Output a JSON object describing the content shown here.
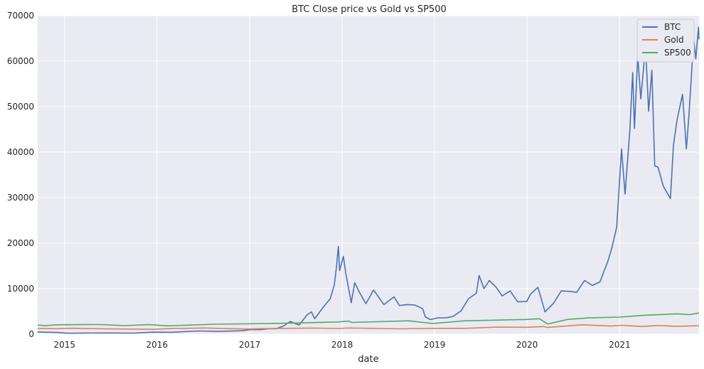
{
  "chart_data": {
    "type": "line",
    "title": "BTC Close price vs Gold vs SP500",
    "xlabel": "date",
    "ylabel": "",
    "xlim": [
      "2014-09-17",
      "2021-11-10"
    ],
    "ylim": [
      0,
      70000
    ],
    "x_ticks": [
      "2015",
      "2016",
      "2017",
      "2018",
      "2019",
      "2020",
      "2021"
    ],
    "y_ticks": [
      "0",
      "10000",
      "20000",
      "30000",
      "40000",
      "50000",
      "60000",
      "70000"
    ],
    "grid": true,
    "legend_position": "top-right",
    "series": [
      {
        "name": "BTC",
        "color": "#4c72b0",
        "points": [
          [
            "2014-09-17",
            460
          ],
          [
            "2014-12-01",
            380
          ],
          [
            "2015-01-15",
            210
          ],
          [
            "2015-04-01",
            250
          ],
          [
            "2015-07-01",
            260
          ],
          [
            "2015-10-01",
            240
          ],
          [
            "2015-12-15",
            430
          ],
          [
            "2016-03-01",
            420
          ],
          [
            "2016-06-15",
            700
          ],
          [
            "2016-09-01",
            610
          ],
          [
            "2016-12-01",
            750
          ],
          [
            "2017-01-05",
            1000
          ],
          [
            "2017-02-15",
            1000
          ],
          [
            "2017-03-15",
            1200
          ],
          [
            "2017-04-15",
            1200
          ],
          [
            "2017-05-15",
            1800
          ],
          [
            "2017-06-10",
            2800
          ],
          [
            "2017-07-15",
            2000
          ],
          [
            "2017-08-15",
            4200
          ],
          [
            "2017-09-01",
            4900
          ],
          [
            "2017-09-15",
            3400
          ],
          [
            "2017-10-15",
            5700
          ],
          [
            "2017-11-15",
            7800
          ],
          [
            "2017-12-01",
            10800
          ],
          [
            "2017-12-10",
            15000
          ],
          [
            "2017-12-17",
            19300
          ],
          [
            "2017-12-22",
            14000
          ],
          [
            "2018-01-06",
            17100
          ],
          [
            "2018-01-15",
            13500
          ],
          [
            "2018-02-06",
            6900
          ],
          [
            "2018-02-20",
            11300
          ],
          [
            "2018-03-10",
            9200
          ],
          [
            "2018-04-05",
            6700
          ],
          [
            "2018-05-05",
            9700
          ],
          [
            "2018-06-15",
            6500
          ],
          [
            "2018-07-25",
            8200
          ],
          [
            "2018-08-15",
            6300
          ],
          [
            "2018-09-15",
            6500
          ],
          [
            "2018-10-15",
            6400
          ],
          [
            "2018-11-15",
            5600
          ],
          [
            "2018-11-25",
            3800
          ],
          [
            "2018-12-15",
            3200
          ],
          [
            "2019-01-15",
            3600
          ],
          [
            "2019-02-15",
            3600
          ],
          [
            "2019-03-15",
            3900
          ],
          [
            "2019-04-15",
            5100
          ],
          [
            "2019-05-15",
            7800
          ],
          [
            "2019-06-15",
            9000
          ],
          [
            "2019-06-26",
            12900
          ],
          [
            "2019-07-15",
            10000
          ],
          [
            "2019-08-05",
            11800
          ],
          [
            "2019-09-01",
            10300
          ],
          [
            "2019-09-25",
            8400
          ],
          [
            "2019-10-26",
            9500
          ],
          [
            "2019-11-25",
            7100
          ],
          [
            "2019-12-31",
            7200
          ],
          [
            "2020-01-15",
            8800
          ],
          [
            "2020-02-13",
            10300
          ],
          [
            "2020-03-12",
            4900
          ],
          [
            "2020-04-15",
            6800
          ],
          [
            "2020-05-15",
            9500
          ],
          [
            "2020-06-15",
            9400
          ],
          [
            "2020-07-15",
            9200
          ],
          [
            "2020-08-15",
            11800
          ],
          [
            "2020-09-15",
            10700
          ],
          [
            "2020-10-15",
            11500
          ],
          [
            "2020-11-15",
            16000
          ],
          [
            "2020-12-01",
            19000
          ],
          [
            "2020-12-20",
            23500
          ],
          [
            "2021-01-08",
            40700
          ],
          [
            "2021-01-22",
            30800
          ],
          [
            "2021-02-10",
            45000
          ],
          [
            "2021-02-21",
            57500
          ],
          [
            "2021-02-28",
            45200
          ],
          [
            "2021-03-13",
            61200
          ],
          [
            "2021-03-25",
            51700
          ],
          [
            "2021-04-13",
            63300
          ],
          [
            "2021-04-25",
            49000
          ],
          [
            "2021-05-08",
            58000
          ],
          [
            "2021-05-19",
            37000
          ],
          [
            "2021-06-01",
            36700
          ],
          [
            "2021-06-22",
            32500
          ],
          [
            "2021-07-20",
            29800
          ],
          [
            "2021-08-01",
            41500
          ],
          [
            "2021-08-15",
            47000
          ],
          [
            "2021-09-06",
            52700
          ],
          [
            "2021-09-21",
            40700
          ],
          [
            "2021-10-01",
            48000
          ],
          [
            "2021-10-20",
            65000
          ],
          [
            "2021-10-28",
            60500
          ],
          [
            "2021-11-08",
            67500
          ],
          [
            "2021-11-10",
            64800
          ]
        ]
      },
      {
        "name": "Gold",
        "color": "#dd8452",
        "points": [
          [
            "2014-09-17",
            1230
          ],
          [
            "2014-12-01",
            1200
          ],
          [
            "2015-01-22",
            1300
          ],
          [
            "2015-06-01",
            1190
          ],
          [
            "2015-12-15",
            1060
          ],
          [
            "2016-03-01",
            1240
          ],
          [
            "2016-07-06",
            1360
          ],
          [
            "2016-12-15",
            1130
          ],
          [
            "2017-03-15",
            1230
          ],
          [
            "2017-09-08",
            1340
          ],
          [
            "2017-12-15",
            1255
          ],
          [
            "2018-01-25",
            1355
          ],
          [
            "2018-08-15",
            1175
          ],
          [
            "2018-12-31",
            1280
          ],
          [
            "2019-05-01",
            1280
          ],
          [
            "2019-09-04",
            1550
          ],
          [
            "2019-12-31",
            1520
          ],
          [
            "2020-03-08",
            1680
          ],
          [
            "2020-03-19",
            1475
          ],
          [
            "2020-08-06",
            2060
          ],
          [
            "2020-11-30",
            1775
          ],
          [
            "2021-01-05",
            1950
          ],
          [
            "2021-03-30",
            1685
          ],
          [
            "2021-06-01",
            1905
          ],
          [
            "2021-08-09",
            1730
          ],
          [
            "2021-11-10",
            1850
          ]
        ]
      },
      {
        "name": "SP500",
        "color": "#55a868",
        "points": [
          [
            "2014-09-17",
            2000
          ],
          [
            "2014-10-15",
            1860
          ],
          [
            "2014-12-01",
            2070
          ],
          [
            "2015-05-20",
            2130
          ],
          [
            "2015-08-25",
            1870
          ],
          [
            "2015-12-01",
            2100
          ],
          [
            "2016-02-11",
            1830
          ],
          [
            "2016-08-15",
            2180
          ],
          [
            "2016-12-15",
            2270
          ],
          [
            "2017-06-15",
            2440
          ],
          [
            "2017-12-15",
            2680
          ],
          [
            "2018-01-26",
            2870
          ],
          [
            "2018-02-08",
            2580
          ],
          [
            "2018-09-20",
            2930
          ],
          [
            "2018-12-24",
            2350
          ],
          [
            "2019-04-30",
            2945
          ],
          [
            "2019-07-26",
            3025
          ],
          [
            "2019-12-31",
            3230
          ],
          [
            "2020-02-19",
            3390
          ],
          [
            "2020-03-23",
            2240
          ],
          [
            "2020-06-08",
            3230
          ],
          [
            "2020-09-02",
            3580
          ],
          [
            "2020-12-31",
            3755
          ],
          [
            "2021-04-15",
            4170
          ],
          [
            "2021-08-15",
            4470
          ],
          [
            "2021-10-04",
            4300
          ],
          [
            "2021-11-10",
            4650
          ]
        ]
      }
    ]
  }
}
